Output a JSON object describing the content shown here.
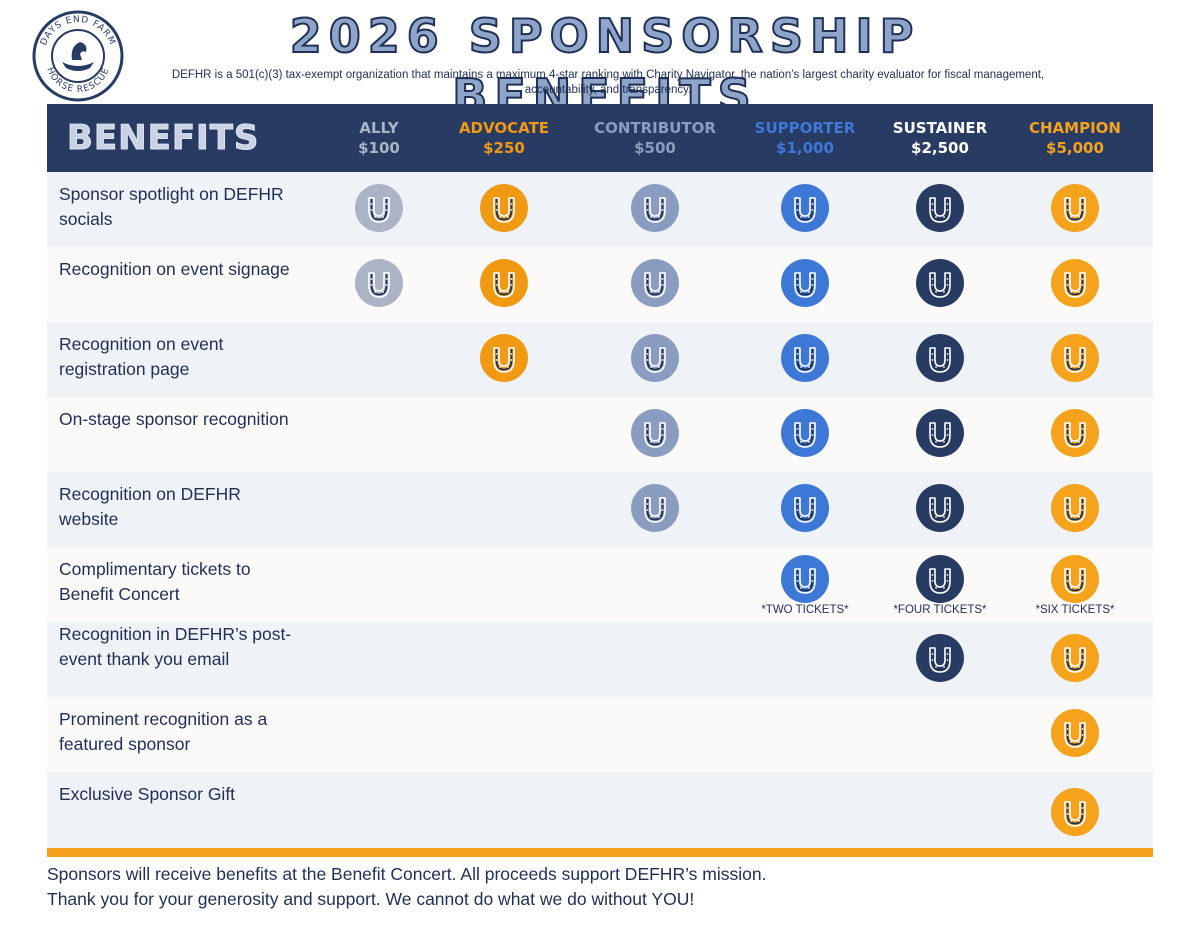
{
  "logo": {
    "top_text": "DAYS END FARM",
    "bottom_text": "HORSE RESCUE",
    "icon": "horse-rescue-seal"
  },
  "title": "2026 SPONSORSHIP BENEFITS",
  "subtitle_line1": "DEFHR is a 501(c)(3) tax-exempt organization that maintains a maximum 4-star ranking with Charity Navigator, the nation’s largest charity evaluator for fiscal management,",
  "subtitle_line2": "accountability, and transparency.",
  "header": {
    "benefits_label": "BENEFITS",
    "tiers": [
      {
        "name": "ALLY",
        "amount": "$100",
        "color": "#aab4c4"
      },
      {
        "name": "ADVOCATE",
        "amount": "$250",
        "color": "#f09a13"
      },
      {
        "name": "CONTRIBUTOR",
        "amount": "$500",
        "color": "#8a9dc0"
      },
      {
        "name": "SUPPORTER",
        "amount": "$1,000",
        "color": "#3d78d6"
      },
      {
        "name": "SUSTAINER",
        "amount": "$2,500",
        "color": "#ffffff"
      },
      {
        "name": "CHAMPION",
        "amount": "$5,000",
        "color": "#f5a21d"
      }
    ]
  },
  "icon_colors": [
    "#aab4c4",
    "#f09a13",
    "#8a9dc0",
    "#3d78d6",
    "#283b63",
    "#f5a21d"
  ],
  "icon_name": "horseshoe-icon",
  "rows": [
    {
      "label": "Sponsor spotlight on DEFHR socials",
      "tiers": [
        true,
        true,
        true,
        true,
        true,
        true
      ]
    },
    {
      "label": "Recognition on event signage",
      "tiers": [
        true,
        true,
        true,
        true,
        true,
        true
      ]
    },
    {
      "label": "Recognition on event registration page",
      "tiers": [
        false,
        true,
        true,
        true,
        true,
        true
      ]
    },
    {
      "label": "On-stage sponsor recognition",
      "tiers": [
        false,
        false,
        true,
        true,
        true,
        true
      ]
    },
    {
      "label": "Recognition on DEFHR website",
      "tiers": [
        false,
        false,
        true,
        true,
        true,
        true
      ]
    },
    {
      "label": "Complimentary tickets to Benefit Concert",
      "tiers": [
        false,
        false,
        false,
        true,
        true,
        true
      ],
      "notes": [
        "",
        "",
        "",
        "*TWO TICKETS*",
        "*FOUR TICKETS*",
        "*SIX TICKETS*"
      ]
    },
    {
      "label": "Recognition in DEFHR’s post-event thank you email",
      "tiers": [
        false,
        false,
        false,
        false,
        true,
        true
      ]
    },
    {
      "label": "Prominent recognition as a featured sponsor",
      "tiers": [
        false,
        false,
        false,
        false,
        false,
        true
      ]
    },
    {
      "label": "Exclusive Sponsor Gift",
      "tiers": [
        false,
        false,
        false,
        false,
        false,
        true
      ]
    }
  ],
  "footer_line1": "Sponsors will receive benefits at the Benefit Concert. All proceeds support DEFHR’s mission.",
  "footer_line2": "Thank you for your generosity and support. We cannot do what we do without YOU!"
}
